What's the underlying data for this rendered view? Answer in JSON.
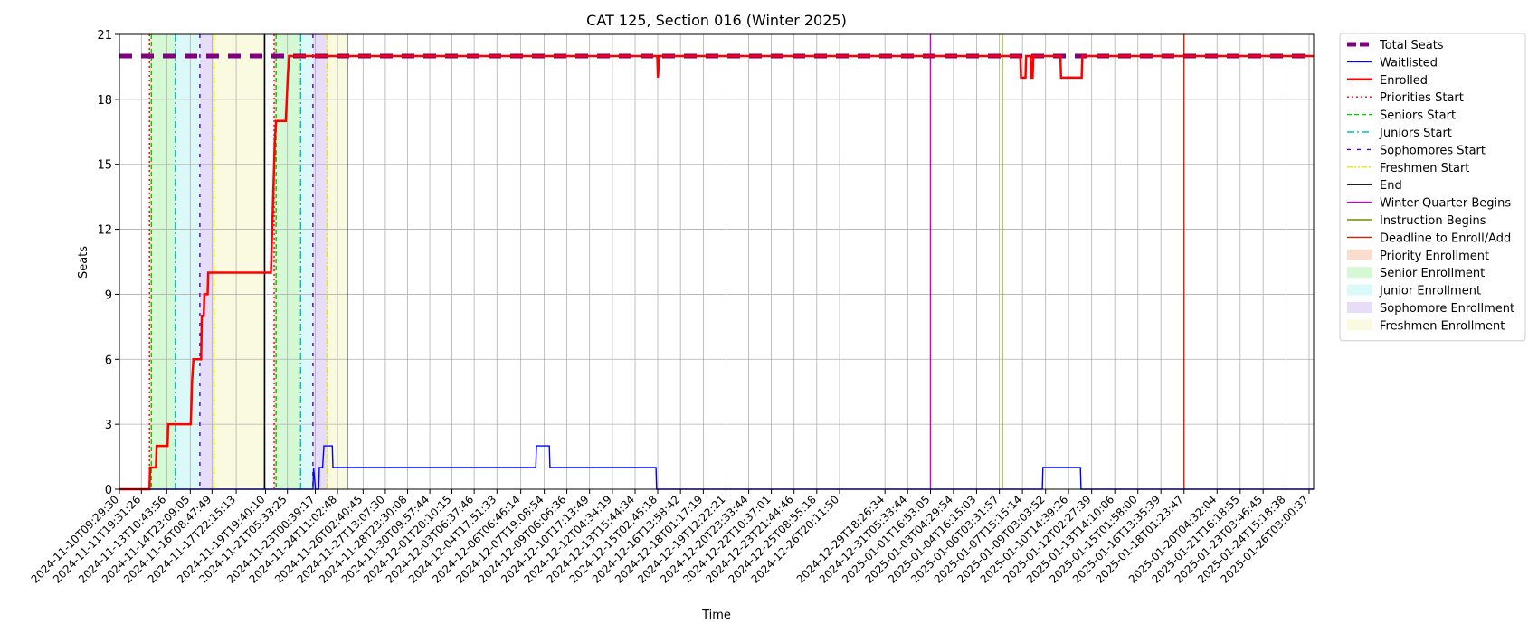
{
  "chart_data": {
    "type": "line",
    "title": "CAT 125, Section 016 (Winter 2025)",
    "xlabel": "Time",
    "ylabel": "Seats",
    "ylim": [
      0,
      21
    ],
    "yticks": [
      0,
      3,
      6,
      9,
      12,
      15,
      18,
      21
    ],
    "xlim": [
      "2024-11-10T09:29:30",
      "2025-01-26T10:00:00"
    ],
    "xtick_labels": [
      "2024-11-10T09:29:30",
      "2024-11-11T19:31:26",
      "2024-11-13T10:43:56",
      "2024-11-14T23:09:05",
      "2024-11-16T08:47:49",
      "2024-11-17T22:15:13",
      "2024-11-19T19:40:10",
      "2024-11-21T05:33:25",
      "2024-11-23T00:39:17",
      "2024-11-24T11:02:48",
      "2024-11-26T02:40:45",
      "2024-11-27T13:07:30",
      "2024-11-28T23:30:08",
      "2024-11-30T09:57:44",
      "2024-12-01T20:10:15",
      "2024-12-03T06:37:46",
      "2024-12-04T17:51:33",
      "2024-12-06T06:46:14",
      "2024-12-07T19:08:54",
      "2024-12-09T06:06:36",
      "2024-12-10T17:13:49",
      "2024-12-12T04:34:19",
      "2024-12-13T15:44:34",
      "2024-12-15T02:45:18",
      "2024-12-16T13:58:42",
      "2024-12-18T01:17:19",
      "2024-12-19T12:22:21",
      "2024-12-20T23:33:44",
      "2024-12-22T10:37:01",
      "2024-12-23T21:44:46",
      "2024-12-25T08:55:18",
      "2024-12-26T20:11:50",
      "2024-12-29T18:26:34",
      "2024-12-31T05:33:44",
      "2025-01-01T16:53:05",
      "2025-01-03T04:29:54",
      "2025-01-04T16:15:03",
      "2025-01-06T03:31:57",
      "2025-01-07T15:15:14",
      "2025-01-09T03:03:52",
      "2025-01-10T14:39:26",
      "2025-01-12T02:27:39",
      "2025-01-13T14:10:06",
      "2025-01-15T01:58:00",
      "2025-01-16T13:35:39",
      "2025-01-18T01:23:47",
      "2025-01-20T04:32:04",
      "2025-01-21T16:18:55",
      "2025-01-23T03:46:45",
      "2025-01-24T15:18:38",
      "2025-01-26T03:00:37"
    ],
    "grid": true,
    "legend_position": "outside upper right",
    "series": [
      {
        "name": "Total Seats",
        "color": "#800080",
        "style": "thick-dashed",
        "points": [
          [
            "2024-11-10T09:29:30",
            20
          ],
          [
            "2025-01-26T10:00:00",
            20
          ]
        ]
      },
      {
        "name": "Waitlisted",
        "color": "#0000ff",
        "style": "solid",
        "points": [
          [
            "2024-11-10T09:29:30",
            0
          ],
          [
            "2024-11-22T21:00:00",
            0
          ],
          [
            "2024-11-22T22:00:00",
            1
          ],
          [
            "2024-11-23T01:00:00",
            0
          ],
          [
            "2024-11-23T06:00:00",
            0
          ],
          [
            "2024-11-23T07:00:00",
            1
          ],
          [
            "2024-11-23T12:00:00",
            1
          ],
          [
            "2024-11-23T14:00:00",
            2
          ],
          [
            "2024-11-24T03:00:00",
            2
          ],
          [
            "2024-11-24T04:00:00",
            1
          ],
          [
            "2024-12-07T06:00:00",
            1
          ],
          [
            "2024-12-07T07:00:00",
            2
          ],
          [
            "2024-12-08T03:00:00",
            2
          ],
          [
            "2024-12-08T04:00:00",
            1
          ],
          [
            "2024-12-15T00:00:00",
            1
          ],
          [
            "2024-12-15T01:00:00",
            0
          ],
          [
            "2025-01-08T22:00:00",
            0
          ],
          [
            "2025-01-08T23:00:00",
            1
          ],
          [
            "2025-01-11T09:00:00",
            1
          ],
          [
            "2025-01-11T10:00:00",
            0
          ],
          [
            "2025-01-26T10:00:00",
            0
          ]
        ]
      },
      {
        "name": "Enrolled",
        "color": "#ff0000",
        "style": "thick-solid",
        "points": [
          [
            "2024-11-10T09:29:30",
            0
          ],
          [
            "2024-11-12T08:00:00",
            0
          ],
          [
            "2024-11-12T09:00:00",
            1
          ],
          [
            "2024-11-12T18:00:00",
            1
          ],
          [
            "2024-11-12T19:00:00",
            2
          ],
          [
            "2024-11-13T12:00:00",
            2
          ],
          [
            "2024-11-13T13:00:00",
            3
          ],
          [
            "2024-11-15T00:00:00",
            3
          ],
          [
            "2024-11-15T02:00:00",
            5
          ],
          [
            "2024-11-15T04:00:00",
            6
          ],
          [
            "2024-11-15T16:00:00",
            6
          ],
          [
            "2024-11-15T17:00:00",
            8
          ],
          [
            "2024-11-15T20:00:00",
            8
          ],
          [
            "2024-11-15T21:00:00",
            9
          ],
          [
            "2024-11-16T02:00:00",
            9
          ],
          [
            "2024-11-16T03:00:00",
            10
          ],
          [
            "2024-11-20T04:00:00",
            10
          ],
          [
            "2024-11-20T07:00:00",
            13
          ],
          [
            "2024-11-20T09:00:00",
            15
          ],
          [
            "2024-11-20T10:00:00",
            16
          ],
          [
            "2024-11-20T12:00:00",
            17
          ],
          [
            "2024-11-21T03:00:00",
            17
          ],
          [
            "2024-11-21T06:00:00",
            19
          ],
          [
            "2024-11-21T08:00:00",
            20
          ],
          [
            "2024-12-15T02:00:00",
            20
          ],
          [
            "2024-12-15T03:00:00",
            19
          ],
          [
            "2024-12-15T05:00:00",
            20
          ],
          [
            "2025-01-07T12:00:00",
            20
          ],
          [
            "2025-01-07T13:00:00",
            19
          ],
          [
            "2025-01-07T20:00:00",
            19
          ],
          [
            "2025-01-07T21:00:00",
            20
          ],
          [
            "2025-01-08T04:00:00",
            20
          ],
          [
            "2025-01-08T05:00:00",
            19
          ],
          [
            "2025-01-08T07:00:00",
            19
          ],
          [
            "2025-01-08T08:00:00",
            20
          ],
          [
            "2025-01-10T02:00:00",
            20
          ],
          [
            "2025-01-10T03:00:00",
            19
          ],
          [
            "2025-01-11T11:00:00",
            19
          ],
          [
            "2025-01-11T12:00:00",
            20
          ],
          [
            "2025-01-26T10:00:00",
            20
          ]
        ]
      }
    ],
    "vertical_lines": [
      {
        "name": "Priorities Start",
        "color": "#ff0000",
        "style": "dotted",
        "x": [
          "2024-11-12T08:00:00",
          "2024-11-20T09:00:00"
        ]
      },
      {
        "name": "Seniors Start",
        "color": "#00cc00",
        "style": "dashed",
        "x": [
          "2024-11-12T11:00:00",
          "2024-11-20T12:00:00"
        ]
      },
      {
        "name": "Juniors Start",
        "color": "#00bfbf",
        "style": "dashdot",
        "x": [
          "2024-11-14T00:00:00",
          "2024-11-22T02:00:00"
        ]
      },
      {
        "name": "Sophomores Start",
        "color": "#5000c8",
        "style": "loosely-dashed",
        "x": [
          "2024-11-15T14:00:00",
          "2024-11-22T21:00:00"
        ]
      },
      {
        "name": "Freshmen Start",
        "color": "#e6e600",
        "style": "dashdotdot",
        "x": [
          "2024-11-16T12:00:00",
          "2024-11-23T19:00:00"
        ]
      },
      {
        "name": "End",
        "color": "#000000",
        "style": "solid",
        "x": [
          "2024-11-19T18:00:00",
          "2024-11-25T02:00:00"
        ]
      },
      {
        "name": "Winter Quarter Begins",
        "color": "#cc00cc",
        "style": "solid",
        "x": [
          "2025-01-01T16:53:05"
        ]
      },
      {
        "name": "Instruction Begins",
        "color": "#6b8e00",
        "style": "solid",
        "x": [
          "2025-01-06T08:00:00"
        ]
      },
      {
        "name": "Deadline to Enroll/Add",
        "color": "#cc2200",
        "style": "solid",
        "x": [
          "2025-01-18T01:23:47"
        ]
      }
    ],
    "shaded_regions": [
      {
        "name": "Priority Enrollment",
        "color": "#f4a582",
        "spans": [
          [
            "2024-11-12T08:00:00",
            "2024-11-12T11:00:00"
          ],
          [
            "2024-11-20T09:00:00",
            "2024-11-20T12:00:00"
          ]
        ]
      },
      {
        "name": "Senior Enrollment",
        "color": "#90ee90",
        "spans": [
          [
            "2024-11-12T11:00:00",
            "2024-11-14T00:00:00"
          ],
          [
            "2024-11-20T12:00:00",
            "2024-11-22T02:00:00"
          ]
        ]
      },
      {
        "name": "Junior Enrollment",
        "color": "#a0eef0",
        "spans": [
          [
            "2024-11-14T00:00:00",
            "2024-11-15T14:00:00"
          ],
          [
            "2024-11-22T02:00:00",
            "2024-11-22T21:00:00"
          ]
        ]
      },
      {
        "name": "Sophomore Enrollment",
        "color": "#c0a6ee",
        "spans": [
          [
            "2024-11-15T14:00:00",
            "2024-11-16T12:00:00"
          ],
          [
            "2024-11-22T21:00:00",
            "2024-11-23T19:00:00"
          ]
        ]
      },
      {
        "name": "Freshmen Enrollment",
        "color": "#f2f2b0",
        "spans": [
          [
            "2024-11-16T12:00:00",
            "2024-11-19T18:00:00"
          ],
          [
            "2024-11-23T19:00:00",
            "2024-11-25T02:00:00"
          ]
        ]
      }
    ],
    "legend": [
      {
        "label": "Total Seats",
        "kind": "line",
        "color": "#800080",
        "style": "thick-dashed"
      },
      {
        "label": "Waitlisted",
        "kind": "line",
        "color": "#0000ff",
        "style": "solid"
      },
      {
        "label": "Enrolled",
        "kind": "line",
        "color": "#ff0000",
        "style": "thick-solid"
      },
      {
        "label": "Priorities Start",
        "kind": "line",
        "color": "#ff0000",
        "style": "dotted"
      },
      {
        "label": "Seniors Start",
        "kind": "line",
        "color": "#00cc00",
        "style": "dashed"
      },
      {
        "label": "Juniors Start",
        "kind": "line",
        "color": "#00bfbf",
        "style": "dashdot"
      },
      {
        "label": "Sophomores Start",
        "kind": "line",
        "color": "#5000c8",
        "style": "loosely-dashed"
      },
      {
        "label": "Freshmen Start",
        "kind": "line",
        "color": "#e6e600",
        "style": "dashdotdot"
      },
      {
        "label": "End",
        "kind": "line",
        "color": "#000000",
        "style": "solid"
      },
      {
        "label": "Winter Quarter Begins",
        "kind": "line",
        "color": "#cc00cc",
        "style": "solid"
      },
      {
        "label": "Instruction Begins",
        "kind": "line",
        "color": "#6b8e00",
        "style": "solid"
      },
      {
        "label": "Deadline to Enroll/Add",
        "kind": "line",
        "color": "#cc2200",
        "style": "solid"
      },
      {
        "label": "Priority Enrollment",
        "kind": "patch",
        "color": "#f4a582"
      },
      {
        "label": "Senior Enrollment",
        "kind": "patch",
        "color": "#90ee90"
      },
      {
        "label": "Junior Enrollment",
        "kind": "patch",
        "color": "#a0eef0"
      },
      {
        "label": "Sophomore Enrollment",
        "kind": "patch",
        "color": "#c0a6ee"
      },
      {
        "label": "Freshmen Enrollment",
        "kind": "patch",
        "color": "#f2f2b0"
      }
    ]
  }
}
